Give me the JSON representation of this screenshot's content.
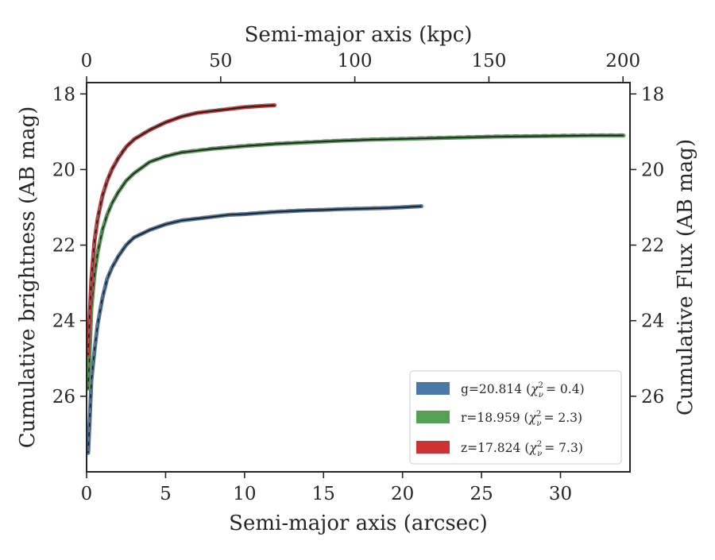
{
  "chart_data": {
    "type": "line",
    "xlabel": "Semi-major axis (arcsec)",
    "x2label": "Semi-major axis (kpc)",
    "ylabel": "Cumulative brightness (AB mag)",
    "y2label": "Cumulative Flux (AB mag)",
    "xlim": [
      0,
      34.4
    ],
    "x2lim": [
      0,
      202.6
    ],
    "ylim": [
      28.0,
      17.7
    ],
    "y_inverted": true,
    "xticks": [
      0,
      5,
      10,
      15,
      20,
      25,
      30
    ],
    "x2ticks": [
      0,
      50,
      100,
      150,
      200
    ],
    "yticks": [
      18,
      20,
      22,
      24,
      26
    ],
    "grid": false,
    "legend_position": "lower-right",
    "series": [
      {
        "name": "g=20.814 (χ²ᵥ = 0.4)",
        "legend_main": "g=20.814 (",
        "legend_chi_sup": "2",
        "legend_chi_sub": "ν",
        "legend_chi_val": "= 0.4)",
        "color": "#4c78a8",
        "x": [
          0.1,
          0.2,
          0.3,
          0.5,
          0.7,
          1.0,
          1.3,
          1.6,
          2.0,
          2.5,
          3.0,
          4.0,
          5.0,
          6.0,
          7.0,
          8.0,
          9.0,
          10.0,
          11.0,
          12.0,
          13.0,
          14.0,
          15.0,
          16.0,
          17.0,
          18.0,
          19.0,
          20.0,
          21.2
        ],
        "y": [
          27.5,
          26.6,
          25.6,
          24.8,
          24.1,
          23.4,
          22.9,
          22.6,
          22.3,
          22.0,
          21.8,
          21.6,
          21.45,
          21.35,
          21.3,
          21.25,
          21.2,
          21.18,
          21.15,
          21.12,
          21.1,
          21.08,
          21.07,
          21.05,
          21.04,
          21.03,
          21.02,
          21.0,
          20.97
        ]
      },
      {
        "name": "r=18.959 (χ²ᵥ = 2.3)",
        "legend_main": "r=18.959 (",
        "legend_chi_sup": "2",
        "legend_chi_sub": "ν",
        "legend_chi_val": "= 2.3)",
        "color": "#55a055",
        "x": [
          0.1,
          0.2,
          0.3,
          0.5,
          0.7,
          1.0,
          1.3,
          1.6,
          2.0,
          2.5,
          3.0,
          4.0,
          5.0,
          6.0,
          8.0,
          10.0,
          12.0,
          14.0,
          16.0,
          18.0,
          20.0,
          22.0,
          24.0,
          26.0,
          28.0,
          30.0,
          32.0,
          34.0
        ],
        "y": [
          25.8,
          24.8,
          23.7,
          22.8,
          22.2,
          21.6,
          21.2,
          20.9,
          20.6,
          20.3,
          20.1,
          19.8,
          19.65,
          19.55,
          19.45,
          19.38,
          19.32,
          19.28,
          19.24,
          19.21,
          19.19,
          19.17,
          19.15,
          19.13,
          19.12,
          19.11,
          19.1,
          19.1
        ]
      },
      {
        "name": "z=17.824 (χ²ᵥ = 7.3)",
        "legend_main": "z=17.824 (",
        "legend_chi_sup": "2",
        "legend_chi_sub": "ν",
        "legend_chi_val": "= 7.3)",
        "color": "#cc3333",
        "x": [
          0.1,
          0.2,
          0.3,
          0.5,
          0.7,
          1.0,
          1.3,
          1.6,
          2.0,
          2.5,
          3.0,
          4.0,
          5.0,
          6.0,
          7.0,
          8.0,
          9.0,
          10.0,
          11.0,
          11.9
        ],
        "y": [
          24.9,
          23.8,
          22.9,
          21.9,
          21.3,
          20.7,
          20.3,
          20.0,
          19.7,
          19.4,
          19.2,
          18.95,
          18.75,
          18.6,
          18.5,
          18.45,
          18.4,
          18.35,
          18.32,
          18.3
        ]
      }
    ]
  }
}
